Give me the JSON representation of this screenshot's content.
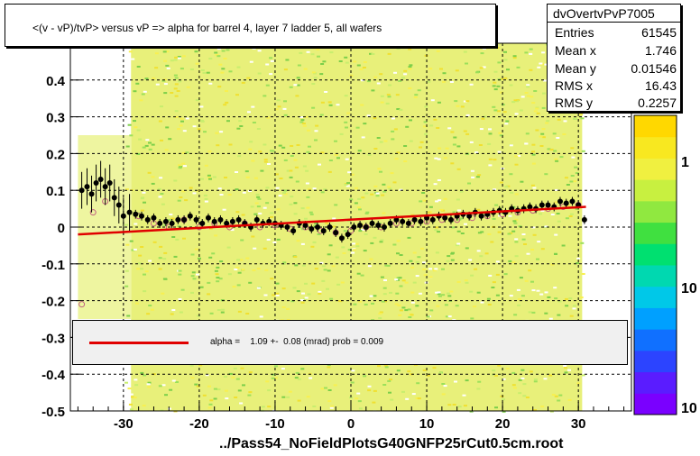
{
  "title": "<(v - vP)/tvP> versus   vP => alpha for barrel 4, layer 7 ladder 5, all wafers",
  "stats": {
    "name": "dvOvertvPvP7005",
    "rows": [
      {
        "key": "Entries",
        "value": "61545"
      },
      {
        "key": "Mean x",
        "value": "1.746"
      },
      {
        "key": "Mean y",
        "value": "0.01546"
      },
      {
        "key": "RMS x",
        "value": "16.43"
      },
      {
        "key": "RMS y",
        "value": "0.2257"
      }
    ]
  },
  "legend": {
    "text": "alpha =    1.09 +-  0.08 (mrad) prob = 0.009",
    "line_color": "#e00000"
  },
  "footer": "../Pass54_NoFieldPlotsG40GNFP25rCut0.5cm.root",
  "colors": {
    "profile_marker": "#000000",
    "alt_marker": "#c06080",
    "fit_line": "#e00000",
    "grid": "#000000"
  },
  "chart_data": {
    "type": "scatter",
    "xlim": [
      -37,
      37
    ],
    "ylim": [
      -0.5,
      0.5
    ],
    "x_ticks": [
      -30,
      -20,
      -10,
      0,
      10,
      20,
      30
    ],
    "x_tick_labels": [
      "-30",
      "-20",
      "-10",
      "0",
      "10",
      "20",
      "30"
    ],
    "y_ticks": [
      -0.5,
      -0.4,
      -0.3,
      -0.2,
      -0.1,
      0,
      0.1,
      0.2,
      0.3,
      0.4
    ],
    "y_tick_labels": [
      "-0.5",
      "-0.4",
      "-0.3",
      "-0.2",
      "-0.1",
      "0",
      "0.1",
      "0.2",
      "0.3",
      "0.4"
    ],
    "grid": true,
    "colorbar_labels": [
      "1",
      "10",
      "10"
    ],
    "fit_line": {
      "x": [
        -36,
        31
      ],
      "y": [
        -0.02,
        0.055
      ]
    },
    "profile_points": {
      "x": [
        -35.5,
        -34.8,
        -34.2,
        -33.6,
        -33.0,
        -32.4,
        -31.8,
        -31.2,
        -30.6,
        -30.0,
        -29.2,
        -28.4,
        -27.6,
        -26.8,
        -26.0,
        -25.2,
        -24.4,
        -23.6,
        -22.8,
        -22.0,
        -21.2,
        -20.4,
        -19.6,
        -18.8,
        -18.0,
        -17.2,
        -16.4,
        -15.6,
        -14.8,
        -14.0,
        -13.2,
        -12.4,
        -11.6,
        -10.8,
        -10.0,
        -9.2,
        -8.4,
        -7.6,
        -6.8,
        -6.0,
        -5.2,
        -4.4,
        -3.6,
        -2.8,
        -2.0,
        -1.2,
        -0.4,
        0.4,
        1.2,
        2.0,
        2.8,
        3.6,
        4.4,
        5.2,
        6.0,
        6.8,
        7.6,
        8.4,
        9.2,
        10.0,
        10.8,
        11.6,
        12.4,
        13.2,
        14.0,
        14.8,
        15.6,
        16.4,
        17.2,
        18.0,
        18.8,
        19.6,
        20.4,
        21.2,
        22.0,
        22.8,
        23.6,
        24.4,
        25.2,
        26.0,
        26.8,
        27.6,
        28.4,
        29.2,
        30.0,
        30.8
      ],
      "y": [
        0.1,
        0.11,
        0.09,
        0.12,
        0.13,
        0.11,
        0.12,
        0.08,
        0.06,
        0.03,
        0.04,
        0.035,
        0.03,
        0.02,
        0.025,
        0.01,
        0.015,
        0.01,
        0.02,
        0.02,
        0.03,
        0.02,
        0.01,
        0.025,
        0.015,
        0.02,
        0.01,
        0.015,
        0.02,
        0.01,
        0.0,
        0.02,
        0.01,
        0.015,
        0.01,
        0.005,
        0.0,
        -0.01,
        0.01,
        0.005,
        -0.005,
        0.0,
        -0.01,
        0.0,
        -0.015,
        -0.03,
        -0.02,
        0.0,
        0.005,
        0.0,
        0.01,
        0.005,
        0.0,
        0.01,
        0.02,
        0.015,
        0.01,
        0.02,
        0.015,
        0.025,
        0.02,
        0.03,
        0.025,
        0.02,
        0.03,
        0.035,
        0.03,
        0.04,
        0.03,
        0.035,
        0.04,
        0.045,
        0.04,
        0.05,
        0.045,
        0.05,
        0.055,
        0.05,
        0.06,
        0.06,
        0.055,
        0.07,
        0.065,
        0.07,
        0.06,
        0.02
      ]
    },
    "alt_points": {
      "x": [
        -35.5,
        -34.0,
        -32.4,
        -28.0,
        -26.0,
        -24.0,
        -22.0,
        -20.0,
        -18.0,
        -16.0,
        -14.0,
        -12.0,
        -10.0,
        -8.0,
        -6.0,
        -4.0,
        -2.0,
        0.0,
        2.0,
        4.0,
        6.0,
        8.0,
        10.0,
        12.0,
        14.0,
        16.0,
        18.0,
        20.0,
        22.0,
        24.0,
        26.0,
        28.0,
        30.0
      ],
      "y": [
        -0.21,
        0.04,
        0.07,
        0.03,
        0.01,
        0.0,
        0.02,
        0.0,
        0.01,
        0.0,
        0.01,
        0.0,
        0.005,
        -0.005,
        0.0,
        -0.01,
        -0.015,
        -0.01,
        0.0,
        0.0,
        0.01,
        0.01,
        0.015,
        0.02,
        0.02,
        0.025,
        0.03,
        0.035,
        0.04,
        0.045,
        0.05,
        0.055,
        0.06
      ]
    }
  }
}
